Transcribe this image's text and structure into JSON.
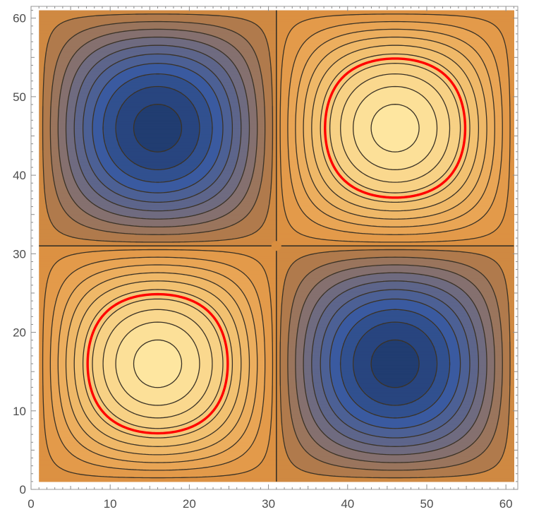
{
  "chart_data": {
    "type": "contour",
    "title": "",
    "xlabel": "",
    "ylabel": "",
    "xlim": [
      0,
      61.5
    ],
    "ylim": [
      0,
      61.5
    ],
    "data_extent": [
      1,
      61
    ],
    "x_ticks": [
      {
        "value": 0,
        "label": "0"
      },
      {
        "value": 10,
        "label": "10"
      },
      {
        "value": 20,
        "label": "20"
      },
      {
        "value": 30,
        "label": "30"
      },
      {
        "value": 40,
        "label": "40"
      },
      {
        "value": 50,
        "label": "50"
      },
      {
        "value": 60,
        "label": "60"
      }
    ],
    "y_ticks": [
      {
        "value": 0,
        "label": "0"
      },
      {
        "value": 10,
        "label": "10"
      },
      {
        "value": 20,
        "label": "20"
      },
      {
        "value": 30,
        "label": "30"
      },
      {
        "value": 40,
        "label": "40"
      },
      {
        "value": 50,
        "label": "50"
      },
      {
        "value": 60,
        "label": "60"
      }
    ],
    "field": {
      "formula": "sin(pi*(x-1)/30) * sin(pi*(y-1)/30)",
      "description": "two peaks (bottom-left, top-right) and two troughs (top-left, bottom-right)"
    },
    "extrema": [
      {
        "kind": "max",
        "x": 15.5,
        "y": 15.3
      },
      {
        "kind": "max",
        "x": 46.5,
        "y": 46.8
      },
      {
        "kind": "min",
        "x": 15.3,
        "y": 46.8
      },
      {
        "kind": "min",
        "x": 46.8,
        "y": 15.3
      }
    ],
    "contour_levels": [
      -0.95,
      -0.85,
      -0.75,
      -0.65,
      -0.55,
      -0.45,
      -0.35,
      -0.25,
      -0.15,
      -0.05,
      0,
      0.05,
      0.15,
      0.25,
      0.35,
      0.45,
      0.55,
      0.65,
      0.75,
      0.85,
      0.95
    ],
    "highlighted_level": 0.6,
    "highlight_color": "#ff0000",
    "contour_line_color": "#3a3226",
    "colormap": [
      {
        "v": -1.0,
        "color": "#1f3b6e"
      },
      {
        "v": -0.7,
        "color": "#3a5aa0"
      },
      {
        "v": -0.4,
        "color": "#6f6b80"
      },
      {
        "v": -0.1,
        "color": "#b07a4c"
      },
      {
        "v": 0.0,
        "color": "#d98e3f"
      },
      {
        "v": 0.15,
        "color": "#e8a050"
      },
      {
        "v": 0.5,
        "color": "#f2c171"
      },
      {
        "v": 1.0,
        "color": "#ffe8a2"
      }
    ],
    "grid": false
  }
}
